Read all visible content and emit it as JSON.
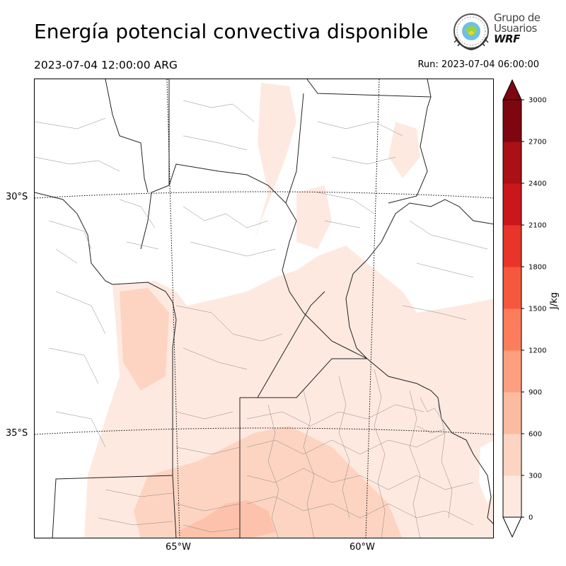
{
  "title": "Energía potencial convectiva disponible",
  "valid_time": "2023-07-04 12:00:00 ARG",
  "run_time": "Run: 2023-07-04 06:00:00",
  "logo": {
    "line1": "Grupo de",
    "line2": "Usuarios",
    "line3": "WRF"
  },
  "map": {
    "lat_labels": [
      "30°S",
      "35°S"
    ],
    "lon_labels": [
      "65°W",
      "60°W"
    ]
  },
  "colorbar": {
    "unit": "J/kg",
    "ticks": [
      "0",
      "300",
      "600",
      "900",
      "1200",
      "1500",
      "1800",
      "2100",
      "2400",
      "2700",
      "3000"
    ],
    "colors": [
      "#fee9e0",
      "#fdd4c2",
      "#fcbba1",
      "#fc9e80",
      "#fb7d5c",
      "#f6583e",
      "#e83429",
      "#ca171c",
      "#aa1016",
      "#7d0610"
    ],
    "extend": "both"
  }
}
